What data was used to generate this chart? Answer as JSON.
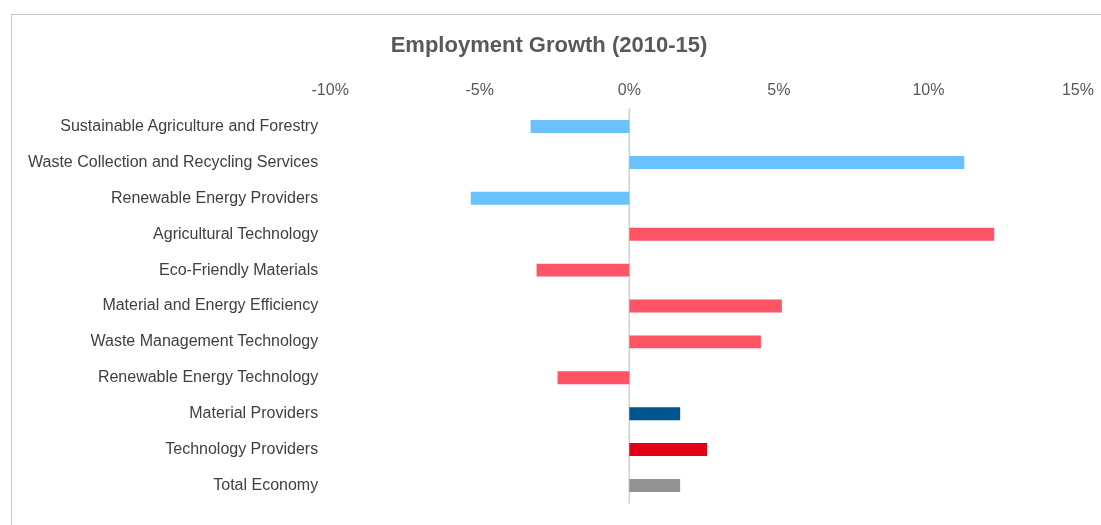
{
  "chart_data": {
    "type": "bar",
    "orientation": "horizontal",
    "title": "Employment Growth (2010-15)",
    "categories": [
      "Sustainable Agriculture and Forestry",
      "Waste Collection and Recycling Services",
      "Renewable Energy Providers",
      "Agricultural Technology",
      "Eco-Friendly Materials",
      "Material and Energy Efficiency",
      "Waste Management Technology",
      "Renewable Energy Technology",
      "Material Providers",
      "Technology Providers",
      "Total Economy"
    ],
    "values": [
      -3.3,
      11.2,
      -5.3,
      12.2,
      -3.1,
      5.1,
      4.4,
      -2.4,
      1.7,
      2.6,
      1.7
    ],
    "colors": [
      "#6ac2fc",
      "#6ac2fc",
      "#6ac2fc",
      "#ff5366",
      "#ff5366",
      "#ff5366",
      "#ff5366",
      "#ff5366",
      "#005590",
      "#e30016",
      "#939393"
    ],
    "xlim": [
      -10,
      15
    ],
    "xticks": [
      {
        "value": -10,
        "label": "-10%"
      },
      {
        "value": -5,
        "label": "-5%"
      },
      {
        "value": 0,
        "label": "0%"
      },
      {
        "value": 5,
        "label": "5%"
      },
      {
        "value": 10,
        "label": "10%"
      },
      {
        "value": 15,
        "label": "15%"
      }
    ],
    "ref_lines": [
      {
        "axis": "x",
        "value": 0,
        "color": "#d0d0d0"
      }
    ],
    "grid": false,
    "legend": false
  }
}
